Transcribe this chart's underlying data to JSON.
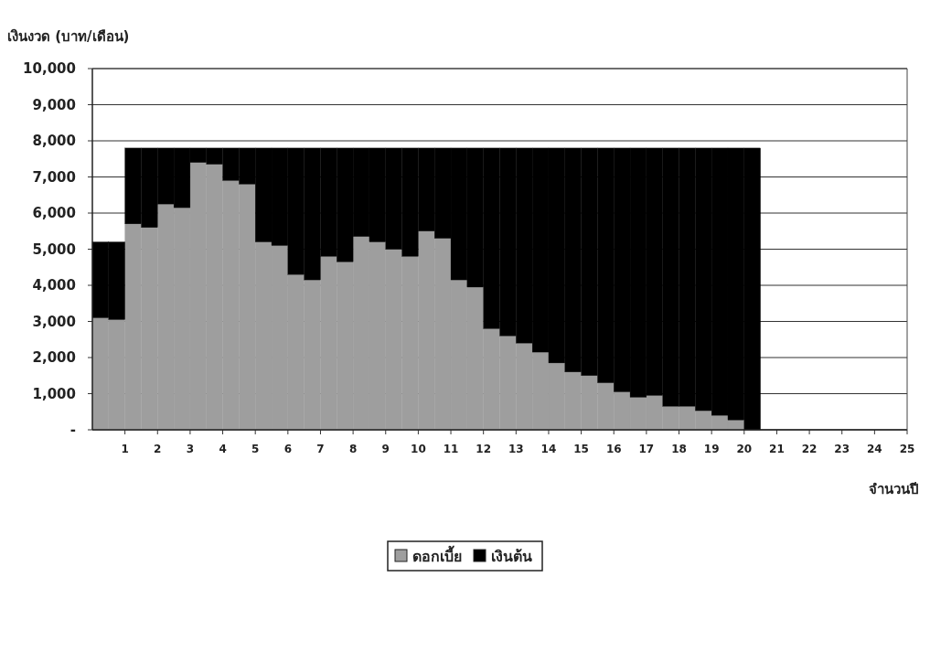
{
  "chart_data": {
    "type": "bar",
    "stacked": true,
    "xlabel": "จำนวนปี",
    "ylabel": "เงินงวด (บาท/เดือน)",
    "x": [
      0.25,
      0.75,
      1.25,
      1.75,
      2.25,
      2.75,
      3.25,
      3.75,
      4.25,
      4.75,
      5.25,
      5.75,
      6.25,
      6.75,
      7.25,
      7.75,
      8.25,
      8.75,
      9.25,
      9.75,
      10.25,
      10.75,
      11.25,
      11.75,
      12.25,
      12.75,
      13.25,
      13.75,
      14.25,
      14.75,
      15.25,
      15.75,
      16.25,
      16.75,
      17.25,
      17.75,
      18.25,
      18.75,
      19.25,
      19.75,
      20.25
    ],
    "series": [
      {
        "name": "ดอกเบี้ย",
        "color": "#9e9e9e",
        "values": [
          3100,
          3050,
          5700,
          5600,
          6250,
          6150,
          7400,
          7350,
          6900,
          6800,
          5200,
          5100,
          4300,
          4150,
          4800,
          4650,
          5350,
          5200,
          5000,
          4800,
          5500,
          5300,
          4150,
          3950,
          2800,
          2600,
          2400,
          2150,
          1850,
          1600,
          1500,
          1300,
          1050,
          900,
          950,
          650,
          650,
          530,
          400,
          270,
          null
        ]
      },
      {
        "name": "เงินต้น",
        "color": "#000000",
        "values": [
          2100,
          2150,
          2100,
          2200,
          1550,
          1650,
          400,
          450,
          900,
          1000,
          2600,
          2700,
          3500,
          3650,
          3000,
          3150,
          2450,
          2600,
          2800,
          3000,
          2300,
          2500,
          3650,
          3850,
          5000,
          5200,
          5400,
          5650,
          5950,
          6200,
          6300,
          6500,
          6750,
          6900,
          6850,
          7150,
          7150,
          7270,
          7400,
          7530,
          7800
        ]
      }
    ],
    "xlim": [
      0,
      25
    ],
    "xticks": [
      1,
      2,
      3,
      4,
      5,
      6,
      7,
      8,
      9,
      10,
      11,
      12,
      13,
      14,
      15,
      16,
      17,
      18,
      19,
      20,
      21,
      22,
      23,
      24,
      25
    ],
    "ylim": [
      0,
      10000
    ],
    "yticks": [
      {
        "value": 0,
        "label": "-"
      },
      {
        "value": 1000,
        "label": "1,000"
      },
      {
        "value": 2000,
        "label": "2,000"
      },
      {
        "value": 3000,
        "label": "3,000"
      },
      {
        "value": 4000,
        "label": "4,000"
      },
      {
        "value": 5000,
        "label": "5,000"
      },
      {
        "value": 6000,
        "label": "6,000"
      },
      {
        "value": 7000,
        "label": "7,000"
      },
      {
        "value": 8000,
        "label": "8,000"
      },
      {
        "value": 9000,
        "label": "9,000"
      },
      {
        "value": 10000,
        "label": "10,000"
      }
    ],
    "grid": "y",
    "legend": "bottom"
  }
}
